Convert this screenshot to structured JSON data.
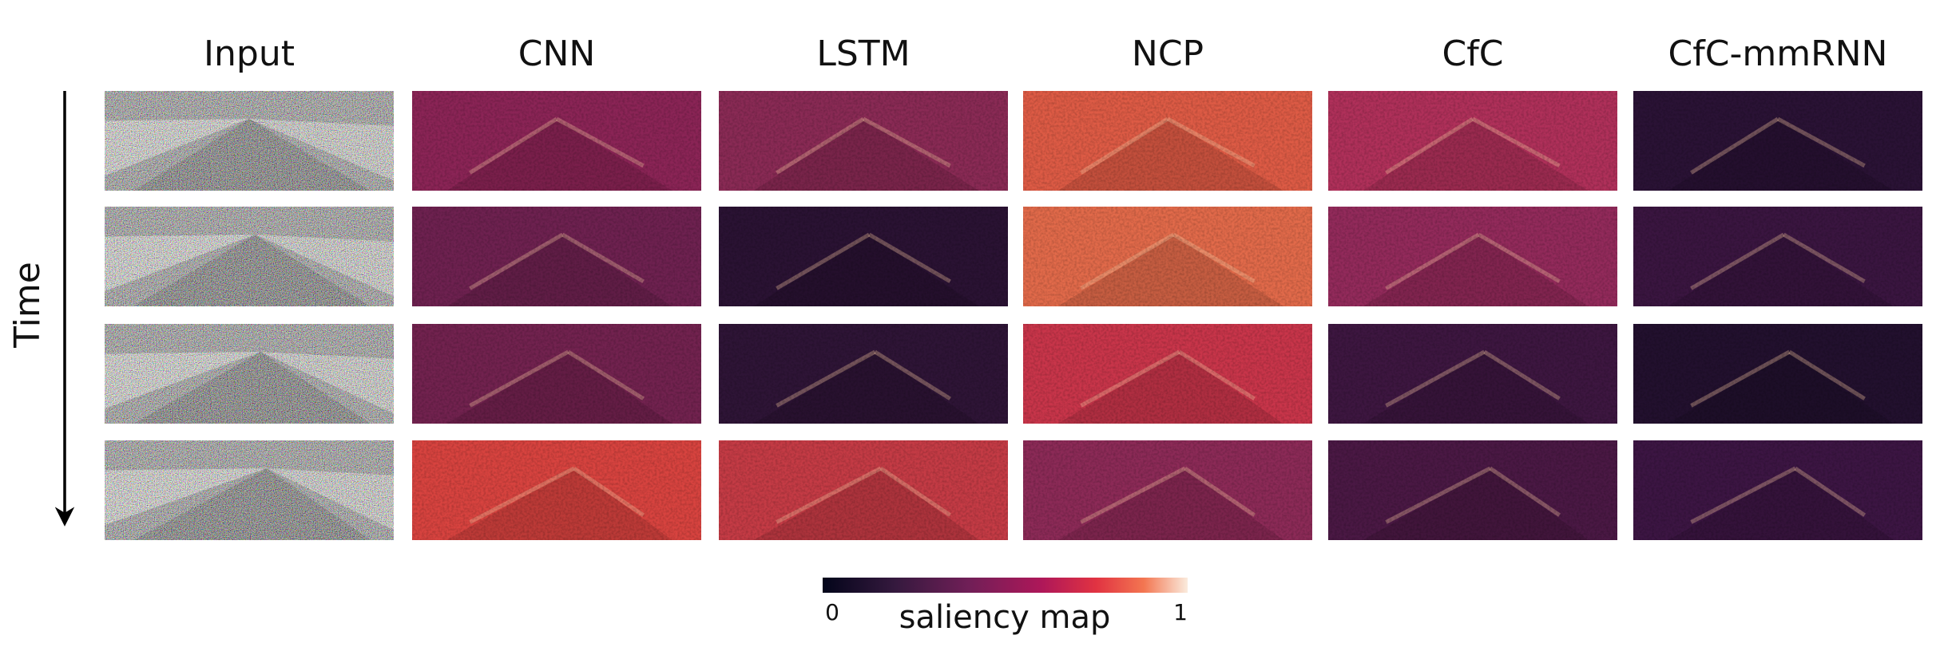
{
  "header": {
    "columns": [
      "Input",
      "CNN",
      "LSTM",
      "NCP",
      "CfC",
      "CfC-mmRNN"
    ]
  },
  "axis": {
    "label": "Time"
  },
  "colorbar": {
    "label": "saliency map",
    "min": 0,
    "max": 1
  }
}
